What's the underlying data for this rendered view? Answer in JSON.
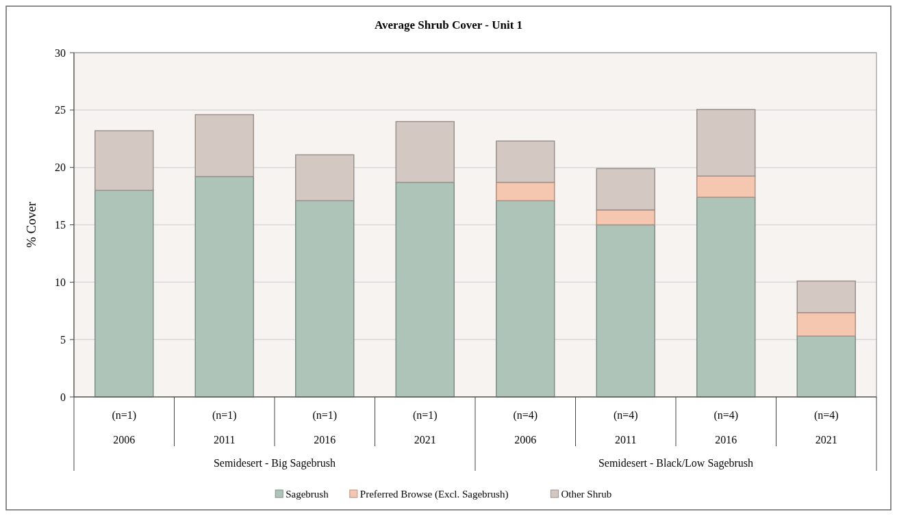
{
  "chart_data": {
    "type": "bar",
    "title": "Average Shrub Cover - Unit 1",
    "ylabel": "% Cover",
    "categories": [
      "(n=1)\n2006",
      "(n=1)\n2011",
      "(n=1)\n2016",
      "(n=1)\n2021",
      "(n=4)\n2006",
      "(n=4)\n2011",
      "(n=4)\n2016",
      "(n=4)\n2021"
    ],
    "annotations": [
      "Semidesert - Big Sagebrush",
      "Semidesert - Black/Low Sagebrush"
    ],
    "stacked": true,
    "series": [
      {
        "name": "Sagebrush",
        "color": "#aec4b9",
        "values": [
          18.0,
          19.2,
          17.1,
          18.7,
          17.1,
          15.0,
          17.4,
          5.3
        ]
      },
      {
        "name": "Preferred Browse (Excl. Sagebrush)",
        "color": "#f5c6b0",
        "values": [
          0,
          0,
          0,
          0,
          1.6,
          1.3,
          1.85,
          2.05
        ]
      },
      {
        "name": "Other Shrub",
        "color": "#d4c8c2",
        "values": [
          5.2,
          5.4,
          4.0,
          5.3,
          3.6,
          3.6,
          5.8,
          2.75
        ]
      }
    ],
    "ylim": [
      0,
      30
    ],
    "yticks": [
      0,
      5,
      10,
      15,
      20,
      25,
      30
    ],
    "grid": "y",
    "legend": "bottom"
  }
}
